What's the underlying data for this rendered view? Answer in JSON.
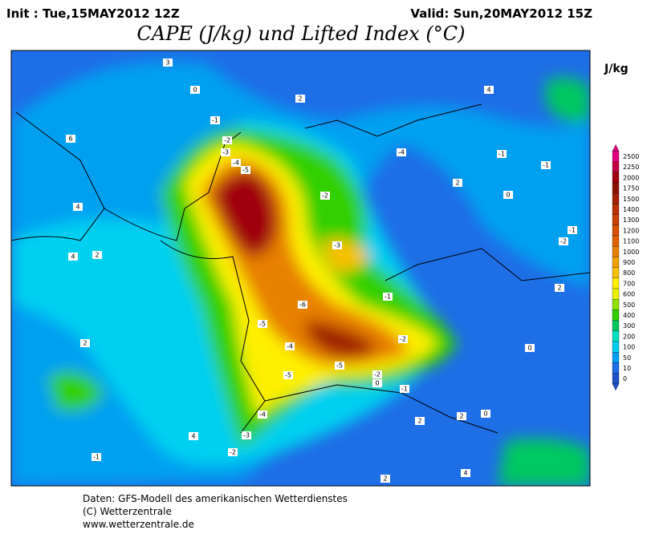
{
  "header": {
    "init": "Init : Tue,15MAY2012 12Z",
    "valid": "Valid: Sun,20MAY2012 15Z",
    "title": "CAPE (J/kg) und Lifted Index (°C)"
  },
  "colorbar": {
    "unit": "J/kg",
    "levels": [
      2500,
      2250,
      2000,
      1750,
      1500,
      1400,
      1300,
      1200,
      1100,
      1000,
      900,
      800,
      700,
      600,
      500,
      400,
      300,
      200,
      100,
      50,
      10,
      0
    ],
    "colors": [
      "#e0007f",
      "#c00040",
      "#a00010",
      "#8a1000",
      "#a02000",
      "#b83000",
      "#c84000",
      "#d85000",
      "#e06000",
      "#e88000",
      "#f0a000",
      "#f8c000",
      "#fff000",
      "#e8f000",
      "#90e000",
      "#30d000",
      "#00c860",
      "#00e0c0",
      "#00d0f0",
      "#00a0f0",
      "#1e6ee6",
      "#2050c8"
    ]
  },
  "contour_labels": [
    "3",
    "0",
    "-1",
    "-2",
    "-3",
    "-4",
    "-5",
    "-2",
    "-3",
    "-1",
    "-5",
    "-6",
    "-2",
    "-5",
    "-4",
    "-5",
    "-2",
    "-4",
    "-1",
    "0",
    "2",
    "4",
    "6",
    "2",
    "4",
    "2",
    "-1",
    "-1",
    "0",
    "-1",
    "-2",
    "2",
    "0",
    "2",
    "-1",
    "4",
    "-4",
    "-3",
    "-2",
    "4",
    "2",
    "2",
    "0",
    "2",
    "4"
  ],
  "footer": {
    "line1": "Daten: GFS-Modell des amerikanischen Wetterdienstes",
    "line2": "(C) Wetterzentrale",
    "line3": "www.wetterzentrale.de"
  }
}
